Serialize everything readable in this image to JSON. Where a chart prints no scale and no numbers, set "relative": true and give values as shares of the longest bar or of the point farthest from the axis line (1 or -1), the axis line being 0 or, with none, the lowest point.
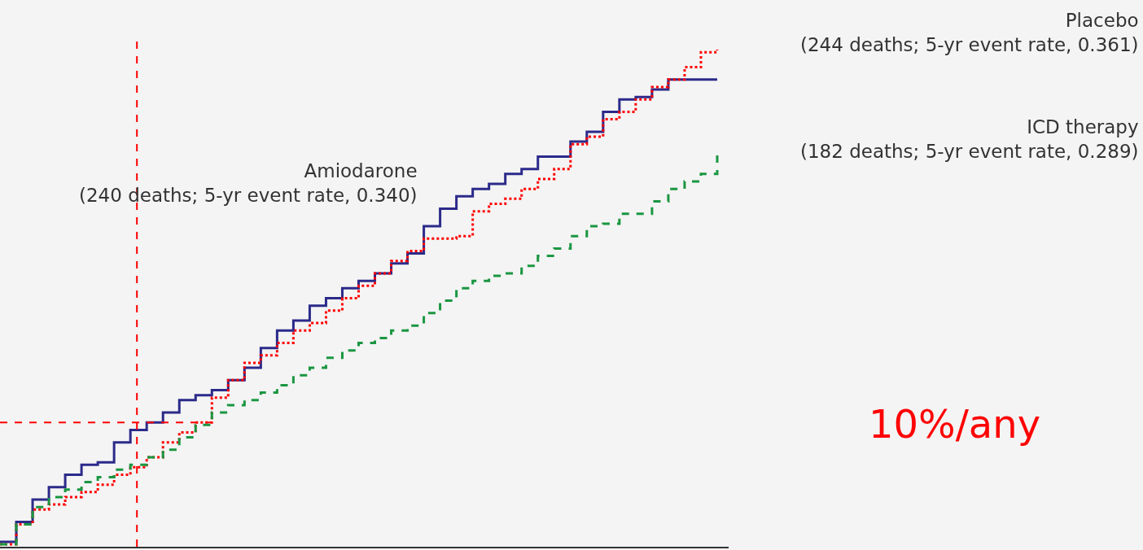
{
  "chart_data": {
    "type": "step",
    "relative": true,
    "categories": [
      null,
      null,
      null,
      null,
      null,
      null,
      null,
      null,
      null,
      null,
      null,
      null,
      null,
      null,
      null,
      null,
      null,
      null,
      null,
      null,
      null,
      null,
      null,
      null,
      null,
      null,
      null,
      null,
      null,
      null,
      null,
      null,
      null,
      null,
      null,
      null,
      null,
      null,
      null,
      null,
      null,
      null,
      null,
      null,
      null
    ],
    "series": [
      {
        "color": "#2b2a8a",
        "line_style": "solid",
        "values": [
          0.01,
          0.05,
          0.095,
          0.12,
          0.145,
          0.165,
          0.17,
          0.21,
          0.235,
          0.25,
          0.27,
          0.295,
          0.305,
          0.315,
          0.335,
          0.36,
          0.4,
          0.435,
          0.455,
          0.485,
          0.5,
          0.52,
          0.535,
          0.55,
          0.57,
          0.59,
          0.645,
          0.68,
          0.705,
          0.72,
          0.73,
          0.75,
          0.76,
          0.785,
          0.785,
          0.815,
          0.835,
          0.875,
          0.9,
          0.905,
          0.92,
          0.94,
          0.94,
          0.94,
          0.94
        ]
      },
      {
        "color": "#ff0000",
        "line_style": "dotted",
        "values": [
          0.005,
          0.045,
          0.075,
          0.085,
          0.1,
          0.11,
          0.125,
          0.145,
          0.16,
          0.18,
          0.21,
          0.23,
          0.25,
          0.3,
          0.335,
          0.37,
          0.385,
          0.41,
          0.435,
          0.45,
          0.475,
          0.5,
          0.525,
          0.55,
          0.575,
          0.595,
          0.62,
          0.62,
          0.625,
          0.675,
          0.69,
          0.7,
          0.72,
          0.74,
          0.76,
          0.81,
          0.825,
          0.86,
          0.875,
          0.9,
          0.925,
          0.94,
          0.965,
          0.995,
          1.0
        ]
      },
      {
        "color": "#1a9641",
        "line_style": "dashed",
        "values": [
          0.005,
          0.045,
          0.08,
          0.1,
          0.115,
          0.13,
          0.14,
          0.155,
          0.165,
          0.18,
          0.195,
          0.22,
          0.245,
          0.27,
          0.285,
          0.295,
          0.31,
          0.325,
          0.345,
          0.36,
          0.38,
          0.395,
          0.41,
          0.42,
          0.435,
          0.445,
          0.47,
          0.495,
          0.52,
          0.535,
          0.545,
          0.55,
          0.565,
          0.585,
          0.6,
          0.625,
          0.645,
          0.65,
          0.67,
          0.67,
          0.695,
          0.72,
          0.735,
          0.75,
          0.79
        ]
      }
    ],
    "ref_lines": [
      {
        "axis": "y",
        "value": 0.25,
        "color": "#ff0000",
        "line_style": "dashed"
      }
    ],
    "annotations": [
      "Placebo\n(244 deaths; 5-yr event rate, 0.361)",
      "ICD therapy\n(182 deaths; 5-yr event rate, 0.289)",
      "Amiodarone\n(240 deaths; 5-yr event rate, 0.340)",
      "10%/any"
    ],
    "legend": false,
    "grid": false
  }
}
